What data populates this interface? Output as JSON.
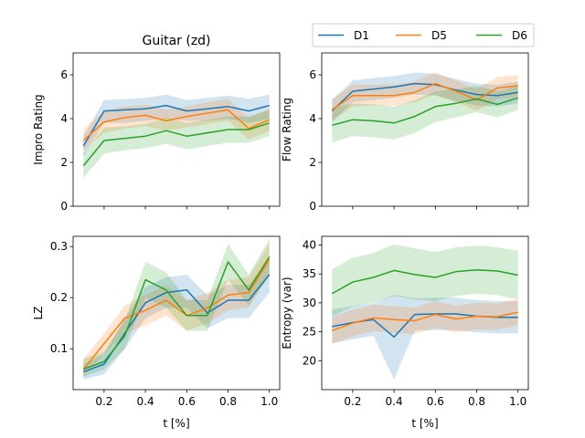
{
  "figure": {
    "title": "Guitar (zd)"
  },
  "legend": {
    "placement": "top-right",
    "entries": [
      "D1",
      "D5",
      "D6"
    ]
  },
  "colors": {
    "D1": "#1f77b4",
    "D5": "#ff7f0e",
    "D6": "#2ca02c"
  },
  "chart_data": [
    {
      "type": "line",
      "title": "Guitar (zd)",
      "xlabel": "",
      "ylabel": "Impro Rating",
      "xlim": [
        0.05,
        1.05
      ],
      "ylim": [
        0,
        7
      ],
      "xticks": [
        0.2,
        0.4,
        0.6,
        0.8,
        1.0
      ],
      "yticks": [
        0,
        2,
        4,
        6
      ],
      "show_xtick_labels": false,
      "x": [
        0.1,
        0.2,
        0.3,
        0.4,
        0.5,
        0.6,
        0.7,
        0.8,
        0.9,
        1.0
      ],
      "series": [
        {
          "name": "D1",
          "values": [
            2.75,
            4.35,
            4.4,
            4.45,
            4.6,
            4.35,
            4.45,
            4.55,
            4.35,
            4.6
          ],
          "lower": [
            2.3,
            3.8,
            3.8,
            3.9,
            4.0,
            3.9,
            3.9,
            4.0,
            3.8,
            4.0
          ],
          "upper": [
            3.2,
            4.85,
            4.9,
            4.95,
            5.1,
            4.85,
            4.95,
            5.05,
            4.9,
            5.1
          ]
        },
        {
          "name": "D5",
          "values": [
            3.0,
            3.85,
            4.05,
            4.15,
            3.9,
            4.1,
            4.25,
            4.4,
            3.55,
            3.95
          ],
          "lower": [
            2.55,
            3.35,
            3.55,
            3.65,
            3.45,
            3.6,
            3.75,
            3.9,
            3.05,
            3.45
          ],
          "upper": [
            3.5,
            4.35,
            4.55,
            4.65,
            4.4,
            4.55,
            4.75,
            4.9,
            4.05,
            4.45
          ]
        },
        {
          "name": "D6",
          "values": [
            1.85,
            3.0,
            3.1,
            3.2,
            3.45,
            3.2,
            3.35,
            3.5,
            3.5,
            3.8
          ],
          "lower": [
            1.3,
            2.4,
            2.55,
            2.65,
            2.85,
            2.6,
            2.75,
            2.9,
            2.9,
            3.2
          ],
          "upper": [
            2.4,
            3.6,
            3.65,
            3.75,
            4.05,
            3.8,
            3.95,
            4.1,
            4.1,
            4.4
          ]
        }
      ]
    },
    {
      "type": "line",
      "title": "",
      "xlabel": "",
      "ylabel": "Flow Rating",
      "xlim": [
        0.05,
        1.05
      ],
      "ylim": [
        0,
        7
      ],
      "xticks": [
        0.2,
        0.4,
        0.6,
        0.8,
        1.0
      ],
      "yticks": [
        0,
        2,
        4,
        6
      ],
      "show_xtick_labels": false,
      "x": [
        0.1,
        0.2,
        0.3,
        0.4,
        0.5,
        0.6,
        0.7,
        0.8,
        0.9,
        1.0
      ],
      "series": [
        {
          "name": "D1",
          "values": [
            4.35,
            5.25,
            5.35,
            5.45,
            5.6,
            5.55,
            5.3,
            5.1,
            5.05,
            5.2
          ],
          "lower": [
            3.85,
            4.75,
            4.85,
            4.95,
            5.1,
            5.05,
            4.8,
            4.6,
            4.55,
            4.7
          ],
          "upper": [
            4.85,
            5.75,
            5.85,
            5.95,
            6.1,
            6.05,
            5.8,
            5.6,
            5.55,
            5.7
          ]
        },
        {
          "name": "D5",
          "values": [
            4.4,
            5.05,
            5.05,
            5.05,
            5.2,
            5.6,
            5.25,
            4.85,
            5.4,
            5.5
          ],
          "lower": [
            3.9,
            4.55,
            4.6,
            4.6,
            4.75,
            5.1,
            4.75,
            4.35,
            4.9,
            5.0
          ],
          "upper": [
            4.9,
            5.55,
            5.55,
            5.55,
            5.7,
            6.1,
            5.75,
            5.35,
            5.9,
            6.0
          ]
        },
        {
          "name": "D6",
          "values": [
            3.7,
            3.95,
            3.9,
            3.8,
            4.1,
            4.55,
            4.7,
            4.9,
            4.65,
            4.95
          ],
          "lower": [
            2.9,
            3.2,
            3.15,
            3.05,
            3.35,
            3.85,
            4.05,
            4.3,
            4.05,
            4.4
          ],
          "upper": [
            4.5,
            4.7,
            4.65,
            4.55,
            4.85,
            5.25,
            5.35,
            5.5,
            5.25,
            5.5
          ]
        }
      ]
    },
    {
      "type": "line",
      "title": "",
      "xlabel": "t [%]",
      "ylabel": "LZ",
      "xlim": [
        0.05,
        1.05
      ],
      "ylim": [
        0.02,
        0.32
      ],
      "xticks": [
        0.2,
        0.4,
        0.6,
        0.8,
        1.0
      ],
      "xtick_labels": [
        "0.2",
        "0.4",
        "0.6",
        "0.8",
        "1.0"
      ],
      "yticks": [
        0.1,
        0.2,
        0.3
      ],
      "ytick_labels": [
        "0.1",
        "0.2",
        "0.3"
      ],
      "show_xtick_labels": true,
      "x": [
        0.1,
        0.2,
        0.3,
        0.4,
        0.5,
        0.6,
        0.7,
        0.8,
        0.9,
        1.0
      ],
      "series": [
        {
          "name": "D1",
          "values": [
            0.055,
            0.07,
            0.13,
            0.19,
            0.21,
            0.215,
            0.17,
            0.195,
            0.195,
            0.245
          ],
          "lower": [
            0.04,
            0.05,
            0.1,
            0.16,
            0.18,
            0.18,
            0.14,
            0.16,
            0.16,
            0.21
          ],
          "upper": [
            0.07,
            0.09,
            0.16,
            0.22,
            0.24,
            0.245,
            0.205,
            0.225,
            0.225,
            0.275
          ]
        },
        {
          "name": "D5",
          "values": [
            0.06,
            0.11,
            0.16,
            0.175,
            0.195,
            0.165,
            0.18,
            0.205,
            0.21,
            0.275
          ],
          "lower": [
            0.045,
            0.09,
            0.13,
            0.145,
            0.165,
            0.135,
            0.15,
            0.175,
            0.18,
            0.245
          ],
          "upper": [
            0.08,
            0.13,
            0.185,
            0.205,
            0.225,
            0.195,
            0.21,
            0.235,
            0.24,
            0.305
          ]
        },
        {
          "name": "D6",
          "values": [
            0.06,
            0.075,
            0.125,
            0.235,
            0.215,
            0.165,
            0.165,
            0.27,
            0.215,
            0.28
          ],
          "lower": [
            0.045,
            0.06,
            0.1,
            0.2,
            0.18,
            0.135,
            0.135,
            0.235,
            0.185,
            0.245
          ],
          "upper": [
            0.08,
            0.095,
            0.155,
            0.27,
            0.25,
            0.195,
            0.195,
            0.305,
            0.245,
            0.315
          ]
        }
      ]
    },
    {
      "type": "line",
      "title": "",
      "xlabel": "t [%]",
      "ylabel": "Entropy (var)",
      "xlim": [
        0.05,
        1.05
      ],
      "ylim": [
        15,
        41.5
      ],
      "xticks": [
        0.2,
        0.4,
        0.6,
        0.8,
        1.0
      ],
      "xtick_labels": [
        "0.2",
        "0.4",
        "0.6",
        "0.8",
        "1.0"
      ],
      "yticks": [
        20,
        25,
        30,
        35,
        40
      ],
      "ytick_labels": [
        "20",
        "25",
        "30",
        "35",
        "40"
      ],
      "show_xtick_labels": true,
      "x": [
        0.1,
        0.2,
        0.3,
        0.4,
        0.5,
        0.6,
        0.7,
        0.8,
        0.9,
        1.0
      ],
      "series": [
        {
          "name": "D1",
          "values": [
            25.9,
            26.6,
            27.1,
            24.1,
            28.0,
            28.1,
            28.1,
            27.7,
            27.5,
            27.5
          ],
          "lower": [
            23.0,
            23.7,
            24.3,
            16.8,
            25.2,
            25.3,
            25.3,
            24.9,
            24.7,
            24.7
          ],
          "upper": [
            28.8,
            29.5,
            29.9,
            31.4,
            30.8,
            30.9,
            30.9,
            30.5,
            30.3,
            30.3
          ]
        },
        {
          "name": "D5",
          "values": [
            25.2,
            26.5,
            27.4,
            27.1,
            26.9,
            28.0,
            27.2,
            27.7,
            27.6,
            28.4
          ],
          "lower": [
            22.9,
            24.2,
            25.1,
            24.8,
            24.6,
            25.7,
            24.9,
            25.4,
            25.3,
            26.1
          ],
          "upper": [
            27.5,
            28.8,
            29.7,
            29.4,
            29.2,
            30.3,
            29.5,
            30.0,
            29.9,
            30.7
          ]
        },
        {
          "name": "D6",
          "values": [
            31.6,
            33.6,
            34.4,
            35.6,
            34.9,
            34.4,
            35.4,
            35.7,
            35.5,
            34.8
          ],
          "lower": [
            27.6,
            29.4,
            30.0,
            31.2,
            30.6,
            30.3,
            31.2,
            31.6,
            31.3,
            30.6
          ],
          "upper": [
            35.8,
            37.8,
            38.6,
            40.1,
            39.4,
            38.8,
            39.6,
            39.9,
            39.6,
            39.0
          ]
        }
      ]
    }
  ]
}
